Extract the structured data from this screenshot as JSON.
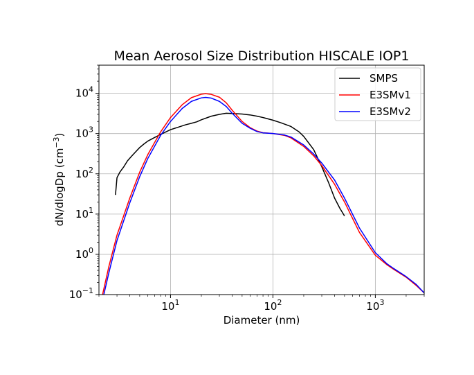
{
  "chart_data": {
    "type": "line",
    "title": "Mean Aerosol Size Distribution HISCALE IOP1",
    "xlabel": "Diameter (nm)",
    "ylabel_main": "dN/dlogDp (cm",
    "ylabel_sup": "−3",
    "ylabel_close": ")",
    "xscale": "log",
    "yscale": "log",
    "xlim": [
      2,
      3000
    ],
    "ylim": [
      0.1,
      50000
    ],
    "grid": true,
    "legend_position": "upper right",
    "x_ticks": [
      {
        "value": 10,
        "base": "10",
        "exp": "1"
      },
      {
        "value": 100,
        "base": "10",
        "exp": "2"
      },
      {
        "value": 1000,
        "base": "10",
        "exp": "3"
      }
    ],
    "y_ticks": [
      {
        "value": 0.1,
        "base": "10",
        "exp": "−1"
      },
      {
        "value": 1,
        "base": "10",
        "exp": "0"
      },
      {
        "value": 10,
        "base": "10",
        "exp": "1"
      },
      {
        "value": 100,
        "base": "10",
        "exp": "2"
      },
      {
        "value": 1000,
        "base": "10",
        "exp": "3"
      },
      {
        "value": 10000,
        "base": "10",
        "exp": "4"
      }
    ],
    "series": [
      {
        "name": "SMPS",
        "color": "#000000",
        "x": [
          2.9,
          3.0,
          3.2,
          3.5,
          3.8,
          4.2,
          4.6,
          5.0,
          5.5,
          6.0,
          7.0,
          8.0,
          9.0,
          10,
          12,
          14,
          16,
          18,
          20,
          25,
          30,
          35,
          40,
          50,
          60,
          70,
          80,
          100,
          120,
          150,
          180,
          200,
          250,
          300,
          350,
          400,
          450,
          500
        ],
        "values": [
          30,
          80,
          110,
          150,
          210,
          280,
          360,
          450,
          550,
          650,
          800,
          950,
          1100,
          1250,
          1450,
          1650,
          1800,
          1950,
          2200,
          2700,
          3000,
          3200,
          3150,
          3050,
          2900,
          2700,
          2500,
          2150,
          1850,
          1500,
          1100,
          850,
          400,
          150,
          60,
          25,
          14,
          9
        ]
      },
      {
        "name": "E3SMv1",
        "color": "#ff0000",
        "x": [
          2,
          2.5,
          3,
          4,
          5,
          6,
          8,
          10,
          13,
          16,
          20,
          22,
          25,
          30,
          35,
          40,
          50,
          60,
          70,
          80,
          100,
          130,
          150,
          200,
          250,
          300,
          400,
          500,
          700,
          1000,
          1300,
          1500,
          2000,
          2500,
          3000
        ],
        "values": [
          0.04,
          0.5,
          3,
          25,
          110,
          300,
          1100,
          2500,
          5200,
          7800,
          9500,
          9800,
          9400,
          8000,
          5800,
          3800,
          2000,
          1400,
          1150,
          1050,
          1000,
          900,
          780,
          480,
          280,
          160,
          55,
          20,
          3.5,
          0.95,
          0.55,
          0.43,
          0.27,
          0.17,
          0.11
        ]
      },
      {
        "name": "E3SMv2",
        "color": "#0000ff",
        "x": [
          2,
          2.5,
          3,
          4,
          5,
          6,
          8,
          10,
          13,
          16,
          20,
          22,
          25,
          30,
          35,
          40,
          50,
          60,
          70,
          80,
          100,
          130,
          150,
          200,
          250,
          300,
          400,
          500,
          700,
          1000,
          1300,
          1500,
          2000,
          2500,
          3000
        ],
        "values": [
          0.03,
          0.35,
          2.2,
          19,
          85,
          240,
          900,
          2000,
          4200,
          6300,
          7700,
          7900,
          7600,
          6300,
          4700,
          3200,
          1800,
          1350,
          1120,
          1040,
          1000,
          920,
          820,
          520,
          310,
          185,
          70,
          25,
          4.5,
          1.1,
          0.58,
          0.45,
          0.28,
          0.18,
          0.11
        ]
      }
    ]
  }
}
